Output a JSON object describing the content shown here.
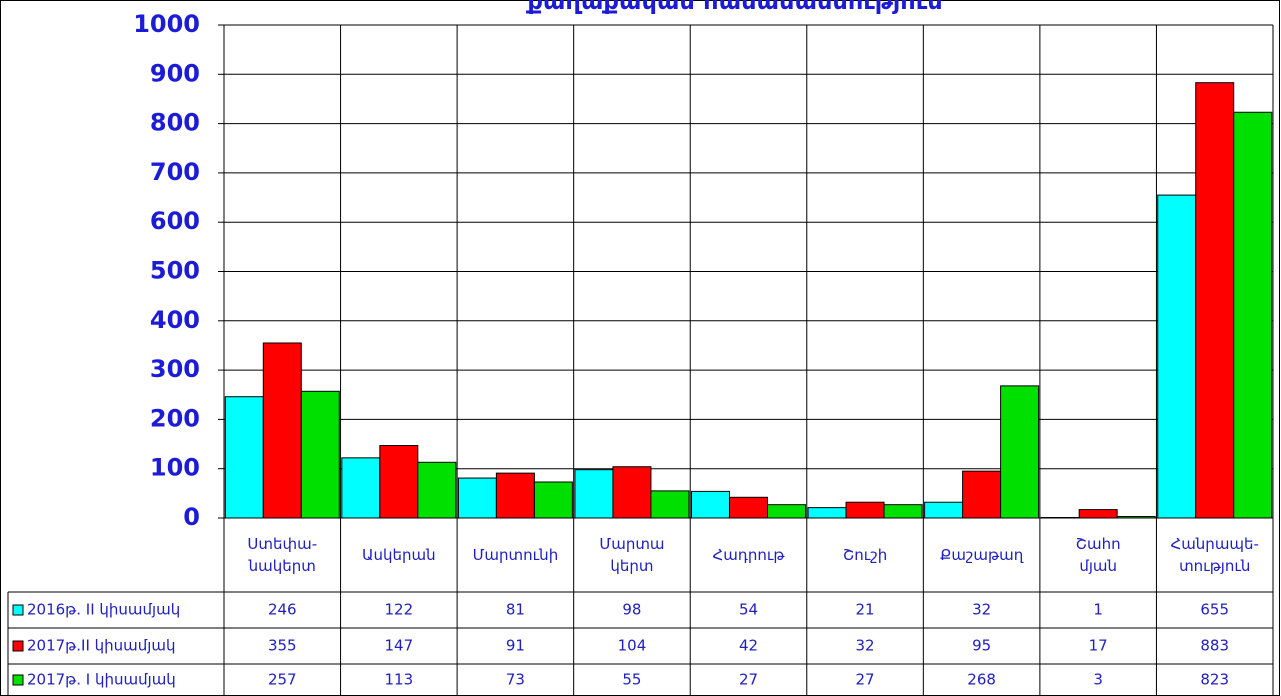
{
  "chart_data": {
    "type": "bar",
    "title": "քաղաքական  համամասնություն",
    "categories": [
      "Ստեփա-\nնակերտ",
      "Ասկերան",
      "Մարտունի",
      "Մարտա\nկերտ",
      "Հադրութ",
      "Շուշի",
      "Քաշաթաղ",
      "Շահո\nմյան",
      "Հանրապե-\nտություն"
    ],
    "series": [
      {
        "name": "2016թ. II  կիսամյակ",
        "color": "#00ffff",
        "values": [
          246,
          122,
          81,
          98,
          54,
          21,
          32,
          1,
          655
        ]
      },
      {
        "name": "2017թ.II կիսամյակ",
        "color": "#ff0000",
        "values": [
          355,
          147,
          91,
          104,
          42,
          32,
          95,
          17,
          883
        ]
      },
      {
        "name": "2017թ. I կիսամյակ",
        "color": "#00e000",
        "values": [
          257,
          113,
          73,
          55,
          27,
          27,
          268,
          3,
          823
        ]
      }
    ],
    "ylim": [
      0,
      1000
    ],
    "yticks": [
      0,
      100,
      200,
      300,
      400,
      500,
      600,
      700,
      800,
      900,
      1000
    ],
    "grid": true
  }
}
